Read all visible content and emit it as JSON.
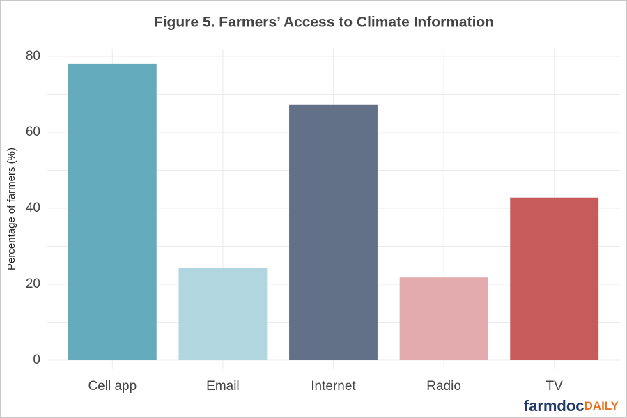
{
  "chart_data": {
    "type": "bar",
    "title": "Figure 5. Farmers’ Access to Climate Information",
    "y_label": "Percentage of farmers (%)",
    "categories": [
      "Cell app",
      "Email",
      "Internet",
      "Radio",
      "TV"
    ],
    "values": [
      78,
      24.4,
      67.2,
      21.8,
      42.8
    ],
    "colors": [
      "#64abbe",
      "#b1d6df",
      "#627088",
      "#e3abad",
      "#c75a5b"
    ],
    "ylim": [
      0,
      80
    ],
    "yticks": [
      0,
      20,
      40,
      60,
      80
    ],
    "grid": true,
    "branding": [
      "farmdoc",
      "DAILY"
    ]
  }
}
